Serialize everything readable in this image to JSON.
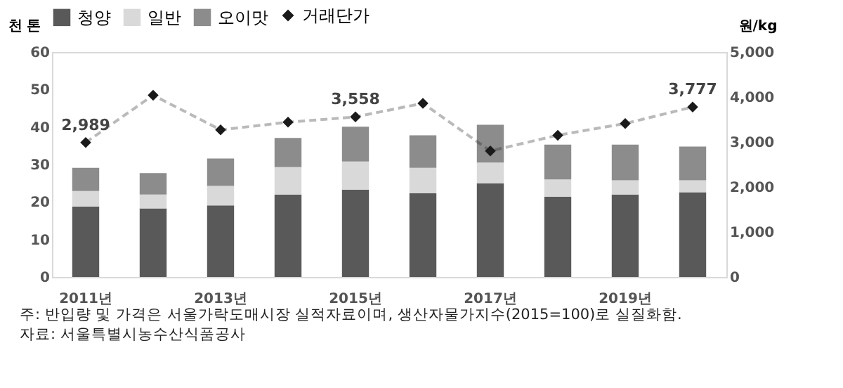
{
  "chart_data": {
    "type": "bar",
    "stacked": true,
    "ylabel": "천 톤",
    "y2label": "원/kg",
    "categories": [
      "2011년",
      null,
      "2013년",
      null,
      "2015년",
      null,
      "2017년",
      null,
      "2019년",
      null
    ],
    "series": [
      {
        "name": "청양",
        "color": "#595959",
        "values": [
          18.8,
          18.3,
          19.1,
          22.0,
          23.3,
          22.3,
          25.0,
          21.4,
          22.0,
          22.6
        ]
      },
      {
        "name": "일반",
        "color": "#d9d9d9",
        "values": [
          4.1,
          3.7,
          5.2,
          7.3,
          7.5,
          6.8,
          5.5,
          4.6,
          3.8,
          3.2
        ]
      },
      {
        "name": "오이맛",
        "color": "#8c8c8c",
        "values": [
          6.2,
          5.7,
          7.3,
          7.8,
          9.3,
          8.7,
          10.1,
          9.3,
          9.5,
          9.0
        ]
      },
      {
        "name": "거래단가",
        "type": "line",
        "axis": "y2",
        "color": "#1a1a1a",
        "line_style": "dashed",
        "marker": "diamond",
        "values": [
          2989,
          4040,
          3270,
          3440,
          3558,
          3860,
          2800,
          3150,
          3410,
          3777
        ],
        "value_labels": [
          "2,989",
          null,
          null,
          null,
          "3,558",
          null,
          null,
          null,
          null,
          "3,777"
        ]
      }
    ],
    "ylim": [
      0,
      60
    ],
    "yticks": [
      0,
      10,
      20,
      30,
      40,
      50,
      60
    ],
    "y2lim": [
      0,
      5000
    ],
    "y2ticks": [
      {
        "value": 0,
        "label": "0"
      },
      {
        "value": 1000,
        "label": "1,000"
      },
      {
        "value": 2000,
        "label": "2,000"
      },
      {
        "value": 3000,
        "label": "3,000"
      },
      {
        "value": 4000,
        "label": "4,000"
      },
      {
        "value": 5000,
        "label": "5,000"
      }
    ],
    "legend": "top",
    "grid": false,
    "annotations": [
      "주: 반입량 및 가격은 서울가락도매시장 실적자료이며, 생산자물가지수(2015=100)로 실질화함.",
      "자료: 서울특별시농수산식품공사"
    ]
  }
}
